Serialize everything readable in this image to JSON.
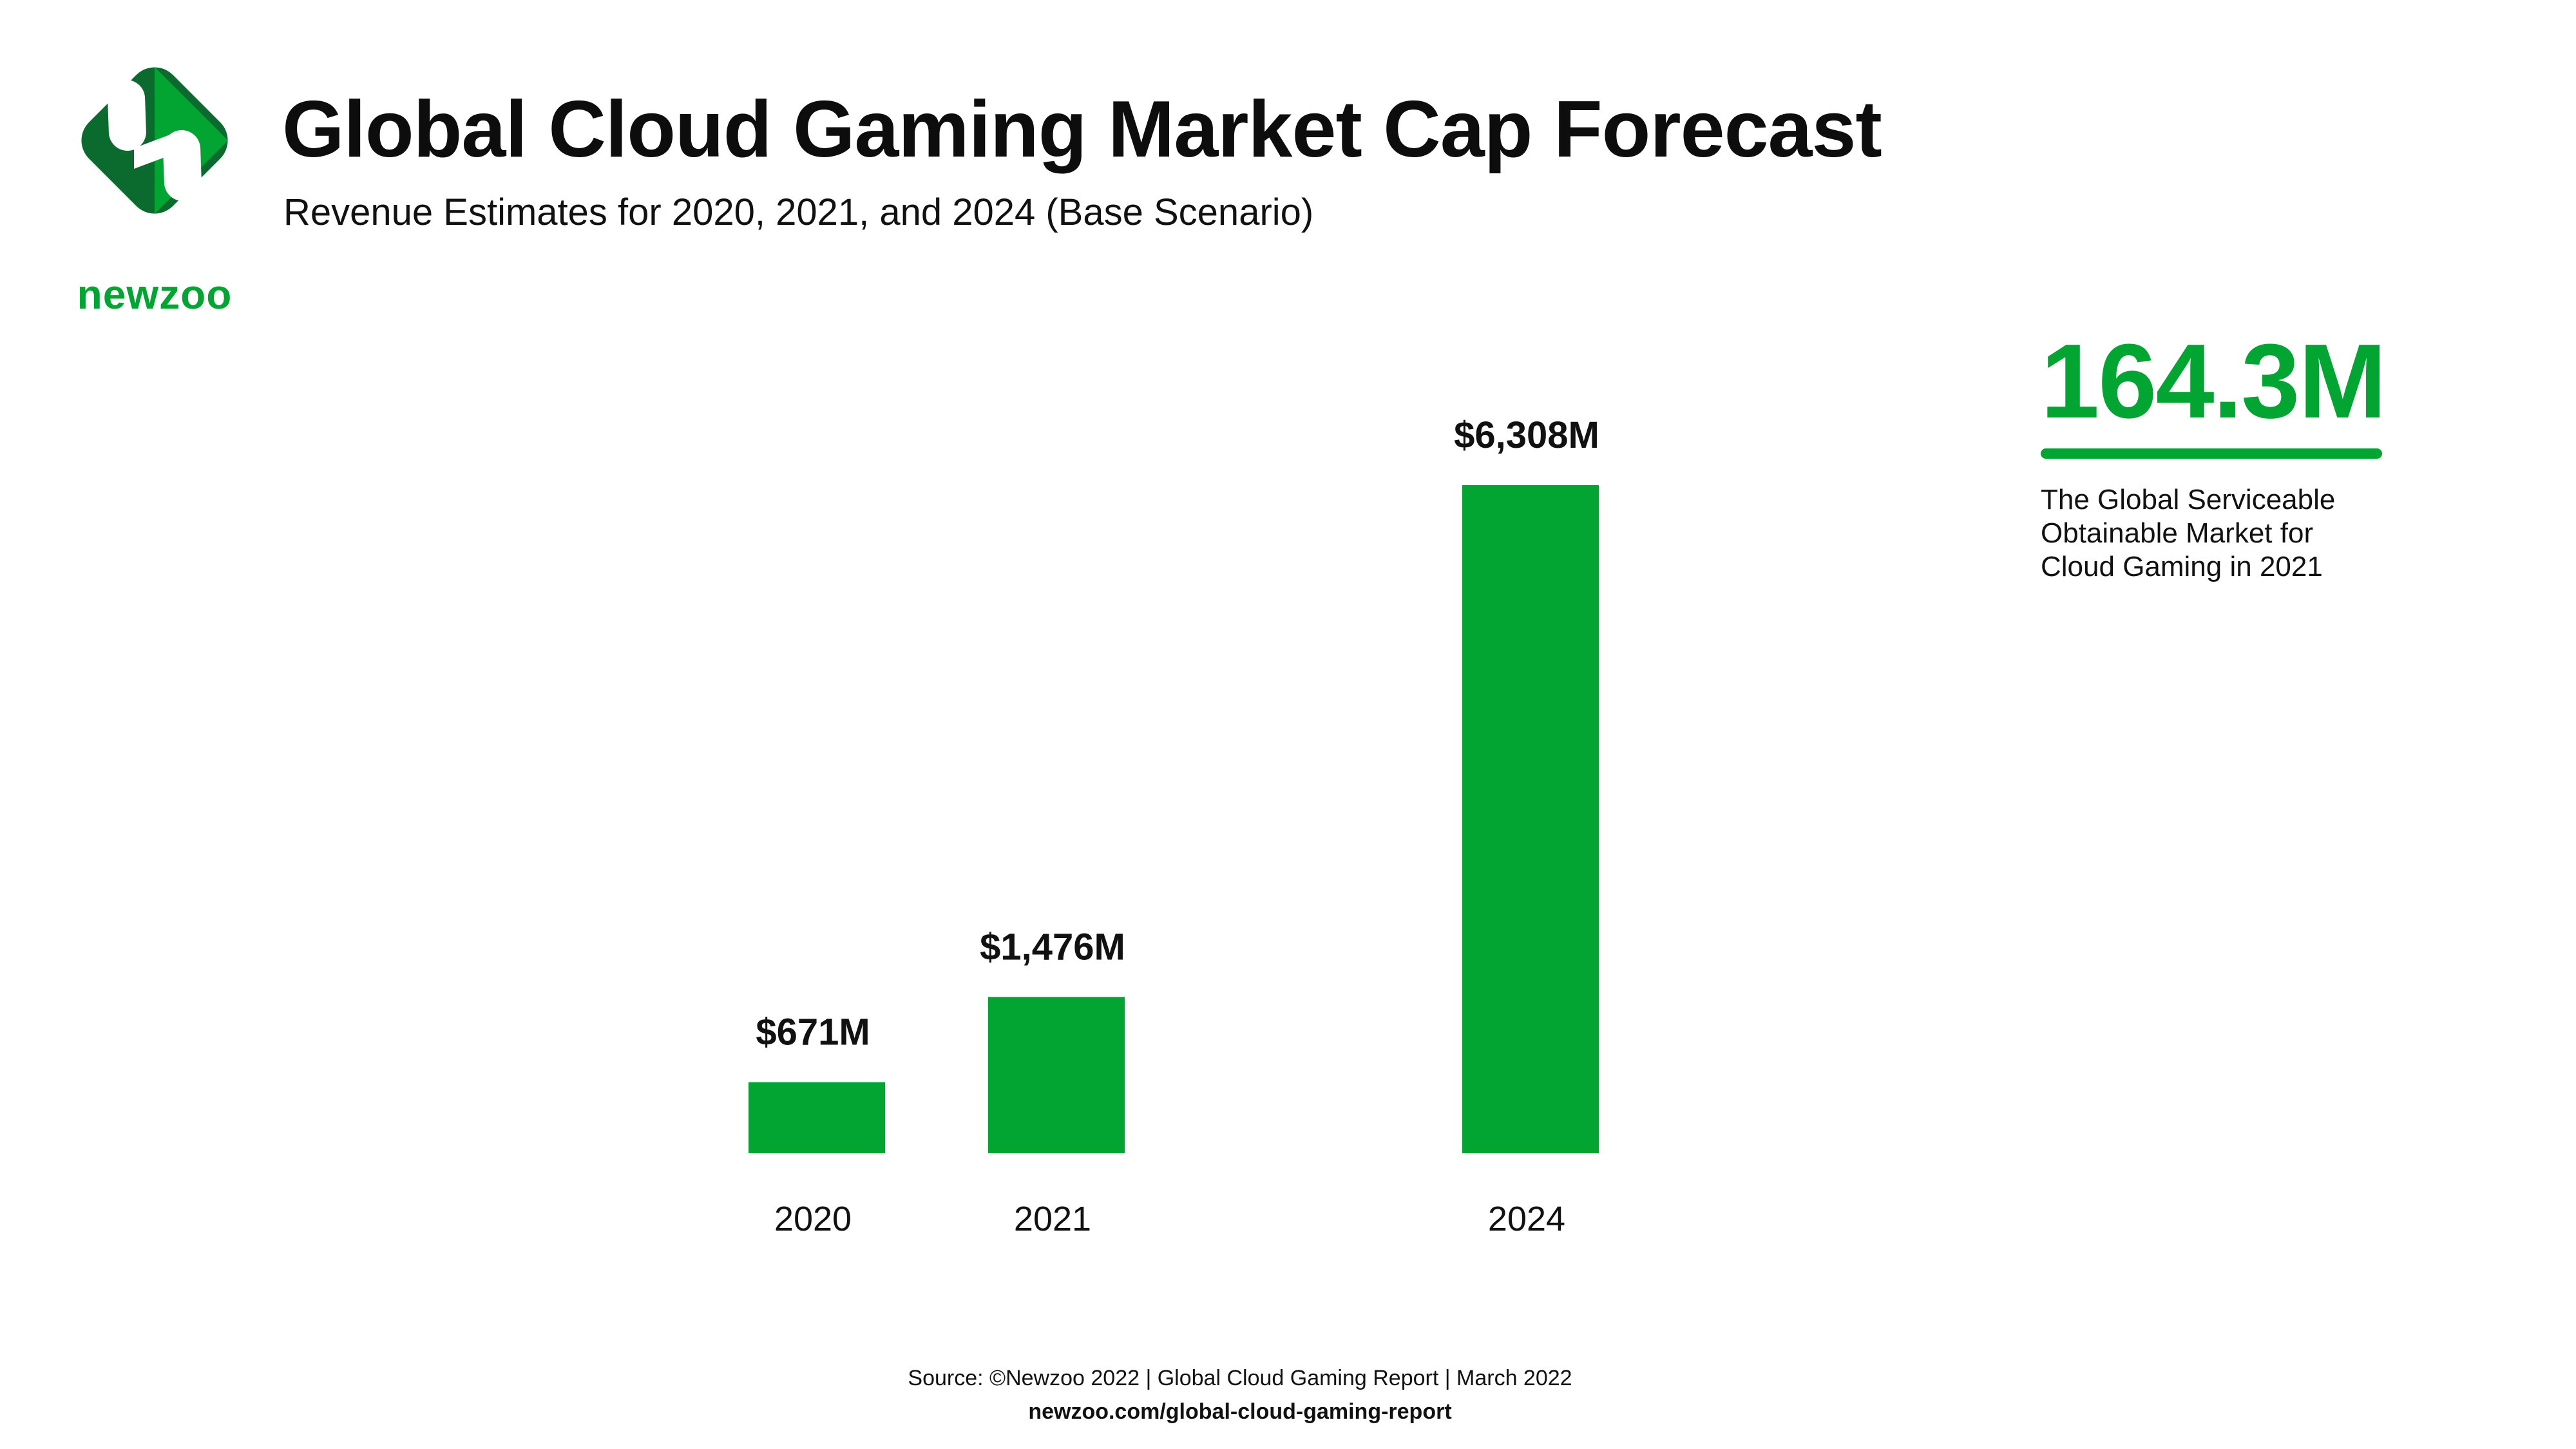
{
  "brand": {
    "name": "newzoo",
    "color": "#02a532",
    "dark_color": "#0b6b2e"
  },
  "header": {
    "title": "Global Cloud Gaming Market Cap Forecast",
    "subtitle": "Revenue Estimates for 2020, 2021, and 2024 (Base Scenario)"
  },
  "chart_data": {
    "type": "bar",
    "title": "Global Cloud Gaming Market Cap Forecast",
    "subtitle": "Revenue Estimates for 2020, 2021, and 2024 (Base Scenario)",
    "categories": [
      "2020",
      "2021",
      "2024"
    ],
    "values": [
      671,
      1476,
      6308
    ],
    "value_labels": [
      "$671M",
      "$1,476M",
      "$6,308M"
    ],
    "unit": "USD millions",
    "xlabel": "",
    "ylabel": "",
    "ylim": [
      0,
      6308
    ],
    "grid": false,
    "bar_color": "#02a532"
  },
  "highlight": {
    "value": "164.3M",
    "description": "The Global Serviceable Obtainable Market for Cloud Gaming in 2021"
  },
  "footer": {
    "source": "Source: ©Newzoo 2022 | Global Cloud Gaming Report | March 2022",
    "url": "newzoo.com/global-cloud-gaming-report"
  }
}
